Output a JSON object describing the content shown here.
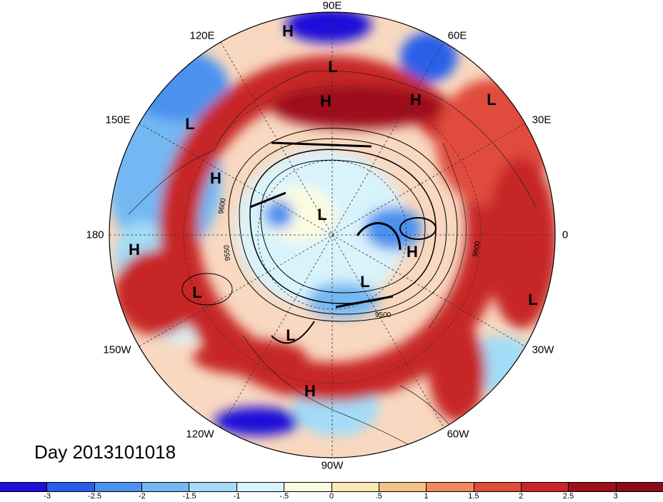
{
  "title": "Day 2013101018",
  "longitude_labels": [
    "90E",
    "60E",
    "30E",
    "0",
    "30W",
    "60W",
    "90W",
    "120W",
    "150W",
    "180",
    "150E",
    "120E"
  ],
  "pressure_systems": [
    {
      "type": "H"
    },
    {
      "type": "L"
    },
    {
      "type": "H"
    },
    {
      "type": "H"
    },
    {
      "type": "L"
    },
    {
      "type": "L"
    },
    {
      "type": "H"
    },
    {
      "type": "L"
    },
    {
      "type": "H"
    },
    {
      "type": "H"
    },
    {
      "type": "L"
    },
    {
      "type": "L"
    },
    {
      "type": "L"
    },
    {
      "type": "L"
    },
    {
      "type": "H"
    }
  ],
  "contour_labels": [
    "9600",
    "9550",
    "9600",
    "9500"
  ],
  "colorbar": {
    "ticks": [
      "-3",
      "-2.5",
      "-2",
      "-1.5",
      "-1",
      "-.5",
      "0",
      ".5",
      "1",
      "1.5",
      "2",
      "2.5",
      "3"
    ],
    "colors": [
      "#1a10d8",
      "#2a5ee8",
      "#4b92ef",
      "#73b8f3",
      "#a3dcf7",
      "#d9f3fb",
      "#fbfbe2",
      "#fbe9b2",
      "#f6c184",
      "#ef8a5c",
      "#e04b3c",
      "#c72527",
      "#9e0f1a",
      "#8a0c18"
    ]
  },
  "colors": {
    "warm": "#c72527",
    "cool": "#4b92ef",
    "background": "#ffffff"
  }
}
